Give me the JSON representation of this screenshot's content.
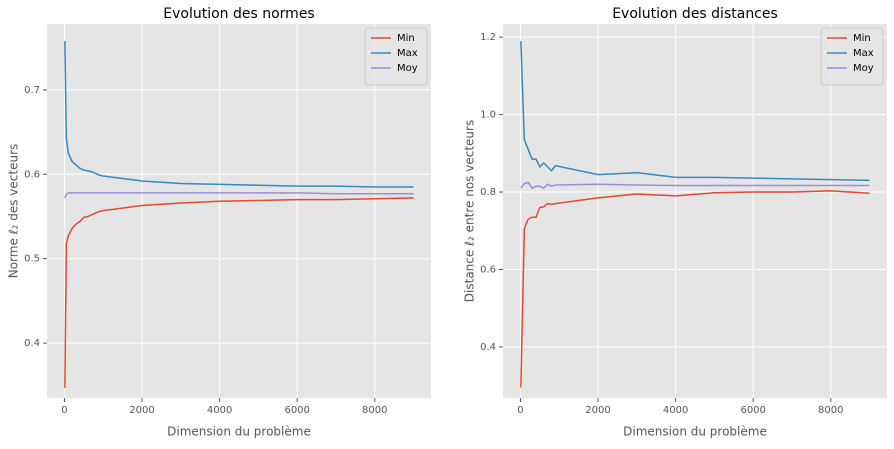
{
  "chart_data": [
    {
      "type": "line",
      "title": "Evolution des normes",
      "xlabel": "Dimension du problème",
      "ylabel": "Norme ℓ₂ des vecteurs",
      "x": [
        10,
        50,
        100,
        200,
        300,
        400,
        500,
        600,
        700,
        800,
        900,
        1000,
        2000,
        3000,
        4000,
        5000,
        6000,
        7000,
        8000,
        9000
      ],
      "series": [
        {
          "name": "Min",
          "color": "#E24A33",
          "values": [
            0.347,
            0.518,
            0.527,
            0.536,
            0.541,
            0.544,
            0.549,
            0.55,
            0.552,
            0.554,
            0.556,
            0.557,
            0.563,
            0.566,
            0.568,
            0.569,
            0.57,
            0.57,
            0.571,
            0.572
          ]
        },
        {
          "name": "Max",
          "color": "#348ABD",
          "values": [
            0.758,
            0.642,
            0.625,
            0.615,
            0.611,
            0.607,
            0.605,
            0.604,
            0.603,
            0.601,
            0.599,
            0.598,
            0.592,
            0.589,
            0.588,
            0.587,
            0.586,
            0.586,
            0.585,
            0.585
          ]
        },
        {
          "name": "Moy",
          "color": "#988ED5",
          "values": [
            0.572,
            0.576,
            0.578,
            0.578,
            0.578,
            0.578,
            0.578,
            0.578,
            0.578,
            0.578,
            0.578,
            0.578,
            0.578,
            0.578,
            0.578,
            0.578,
            0.578,
            0.577,
            0.577,
            0.577
          ]
        }
      ],
      "xlim": [
        -450,
        9450
      ],
      "xticks": [
        0,
        2000,
        4000,
        6000,
        8000
      ],
      "ylim": [
        0.335,
        0.778
      ],
      "yticks": [
        0.4,
        0.5,
        0.6,
        0.7
      ],
      "grid": true,
      "legend": "upper right"
    },
    {
      "type": "line",
      "title": "Evolution des distances",
      "xlabel": "Dimension du problème",
      "ylabel": "Distance ℓ₂ entre nos vecteurs",
      "x": [
        10,
        100,
        200,
        300,
        400,
        500,
        600,
        700,
        800,
        900,
        2000,
        3000,
        4000,
        5000,
        6000,
        7000,
        8000,
        9000
      ],
      "series": [
        {
          "name": "Min",
          "color": "#E24A33",
          "values": [
            0.295,
            0.705,
            0.73,
            0.735,
            0.735,
            0.76,
            0.762,
            0.77,
            0.768,
            0.77,
            0.785,
            0.795,
            0.79,
            0.798,
            0.8,
            0.8,
            0.803,
            0.797
          ]
        },
        {
          "name": "Max",
          "color": "#348ABD",
          "values": [
            1.19,
            0.935,
            0.91,
            0.885,
            0.885,
            0.865,
            0.875,
            0.865,
            0.855,
            0.868,
            0.845,
            0.85,
            0.838,
            0.838,
            0.836,
            0.834,
            0.832,
            0.83
          ]
        },
        {
          "name": "Moy",
          "color": "#988ED5",
          "values": [
            0.81,
            0.822,
            0.825,
            0.81,
            0.815,
            0.815,
            0.81,
            0.82,
            0.815,
            0.818,
            0.82,
            0.818,
            0.817,
            0.817,
            0.817,
            0.817,
            0.817,
            0.817
          ]
        }
      ],
      "xlim": [
        -450,
        9450
      ],
      "xticks": [
        0,
        2000,
        4000,
        6000,
        8000
      ],
      "ylim": [
        0.268,
        1.234
      ],
      "yticks": [
        0.4,
        0.6,
        0.8,
        {
          "value": 1,
          "label": "1.0"
        },
        1.2
      ],
      "grid": true,
      "legend": "upper right"
    }
  ]
}
